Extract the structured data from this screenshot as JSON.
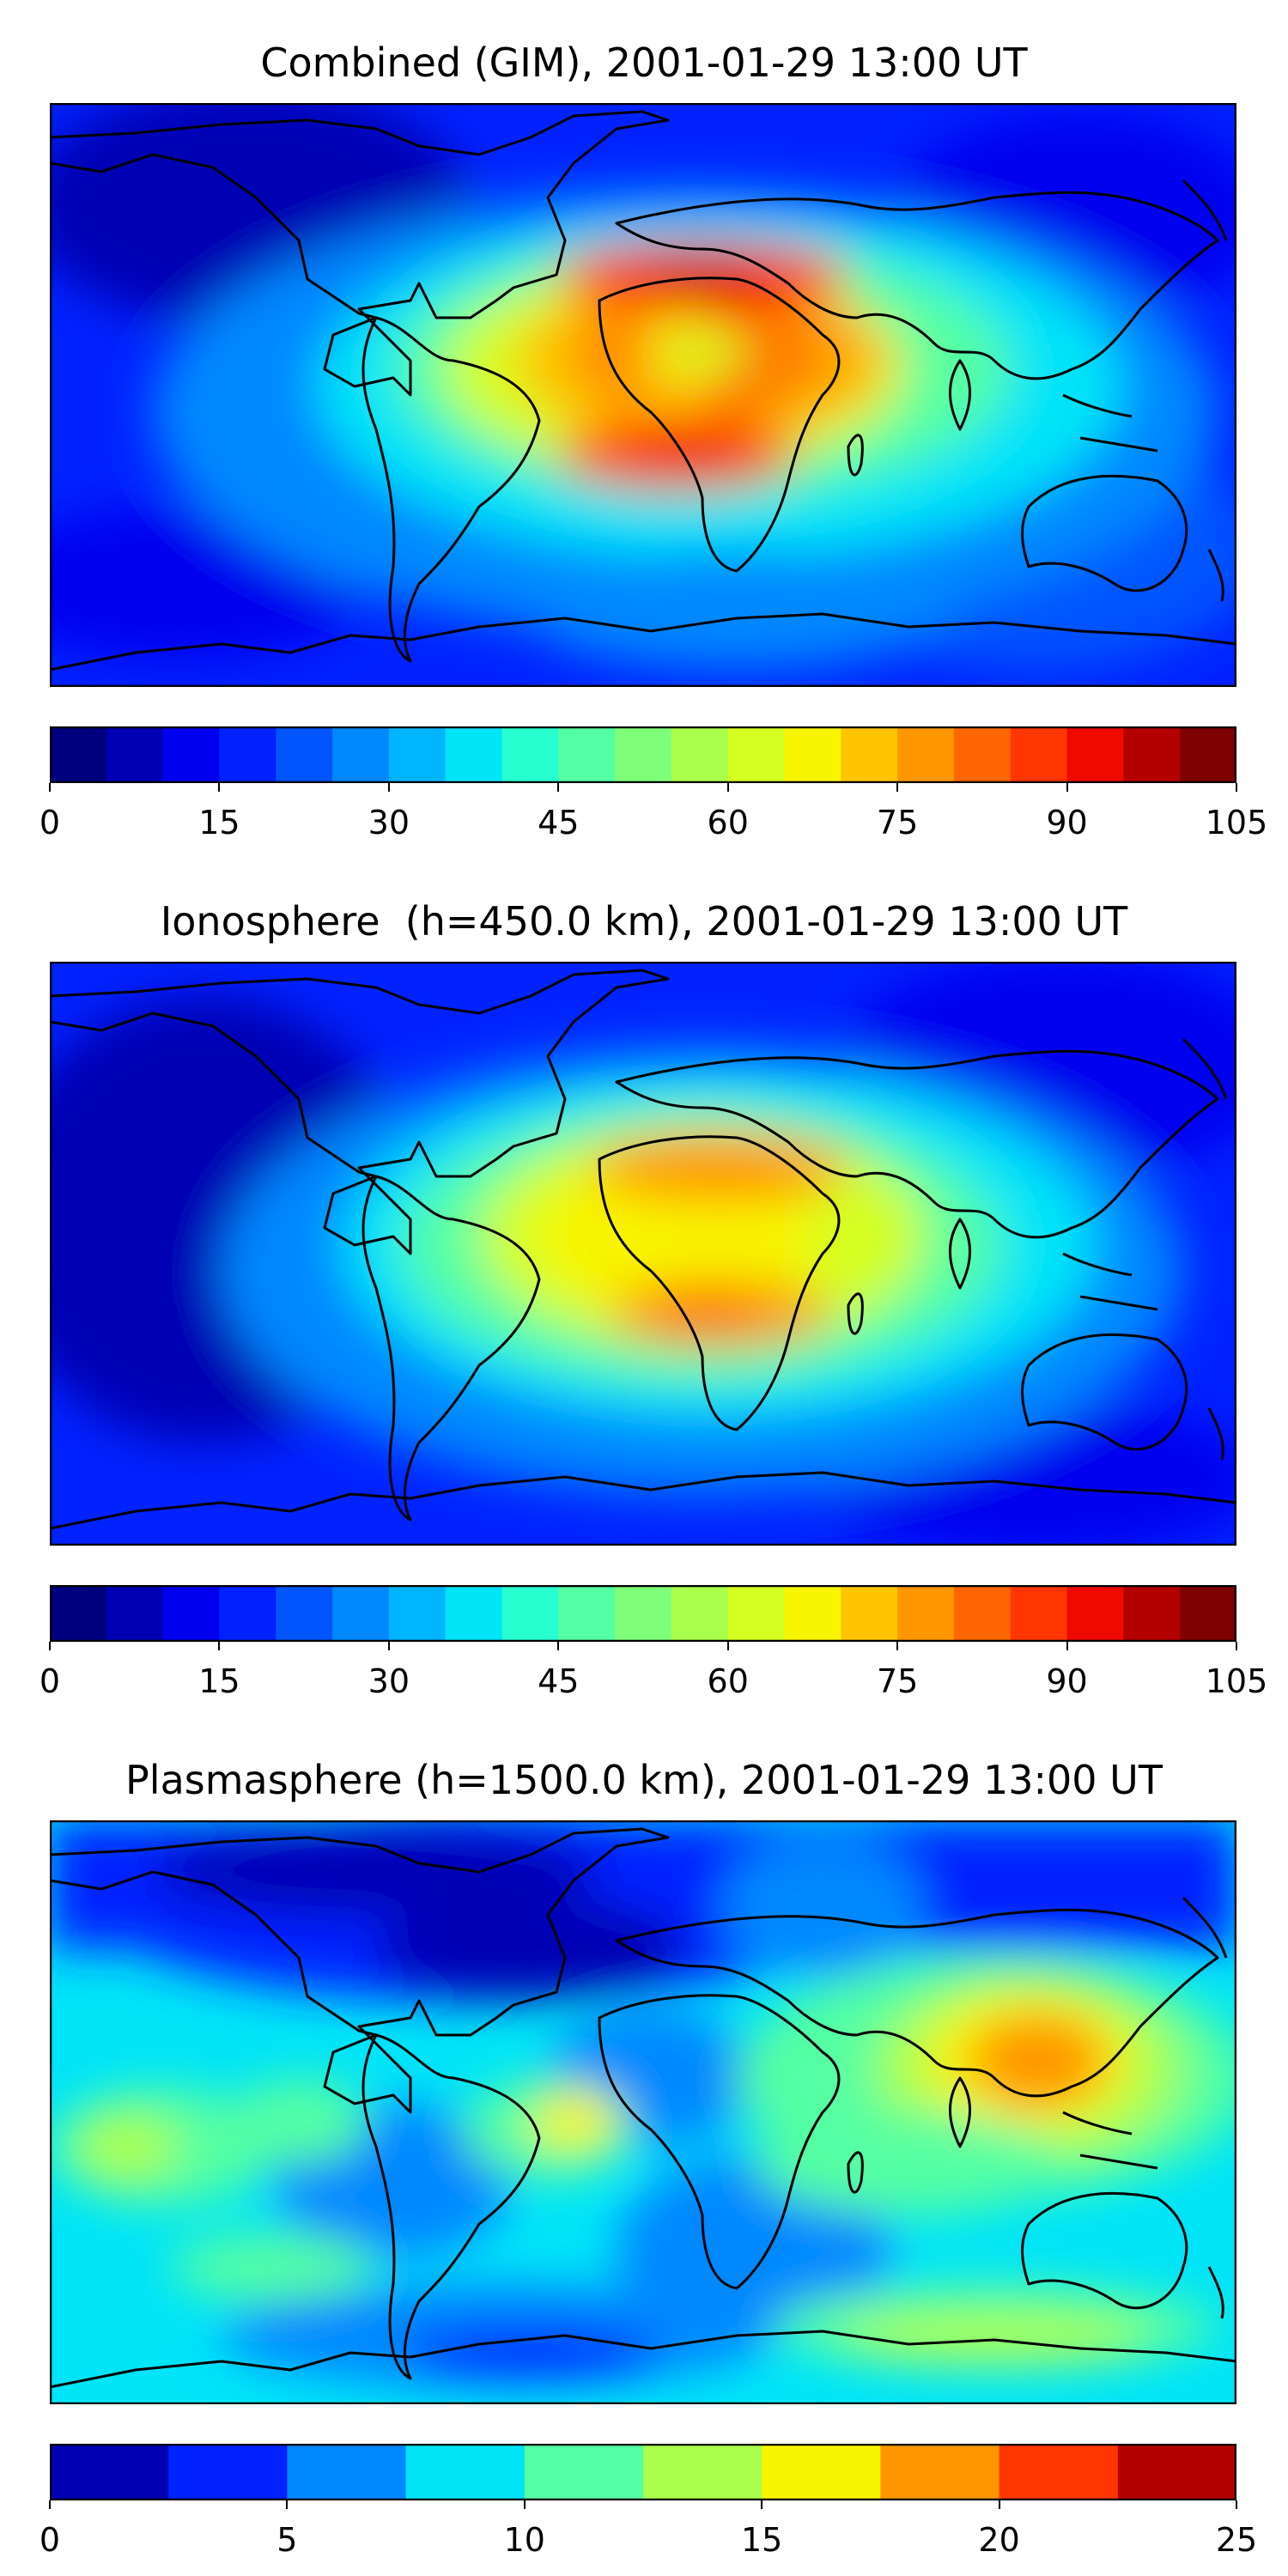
{
  "panels": [
    {
      "title": "Combined (GIM), 2001-01-29 13:00 UT",
      "colorbar": {
        "ticks": [
          "0",
          "15",
          "30",
          "45",
          "60",
          "75",
          "90",
          "105"
        ],
        "levels": [
          "#00007f",
          "#0000b3",
          "#0000ee",
          "#0022ff",
          "#0055ff",
          "#0088ff",
          "#00b5ff",
          "#00e4f8",
          "#27ffd0",
          "#55ffa3",
          "#7fff79",
          "#aaff4d",
          "#d5ff22",
          "#f8f500",
          "#ffc500",
          "#ff9600",
          "#ff6600",
          "#ff3600",
          "#ee0a00",
          "#b30000",
          "#7f0000"
        ]
      }
    },
    {
      "title": "Ionosphere  (h=450.0 km), 2001-01-29 13:00 UT",
      "colorbar": {
        "ticks": [
          "0",
          "15",
          "30",
          "45",
          "60",
          "75",
          "90",
          "105"
        ],
        "levels": [
          "#00007f",
          "#0000b3",
          "#0000ee",
          "#0022ff",
          "#0055ff",
          "#0088ff",
          "#00b5ff",
          "#00e4f8",
          "#27ffd0",
          "#55ffa3",
          "#7fff79",
          "#aaff4d",
          "#d5ff22",
          "#f8f500",
          "#ffc500",
          "#ff9600",
          "#ff6600",
          "#ff3600",
          "#ee0a00",
          "#b30000",
          "#7f0000"
        ]
      }
    },
    {
      "title": "Plasmasphere (h=1500.0 km), 2001-01-29 13:00 UT",
      "colorbar": {
        "ticks": [
          "0",
          "5",
          "10",
          "15",
          "20",
          "25"
        ],
        "levels": [
          "#0000b3",
          "#0022ff",
          "#0088ff",
          "#00e4f8",
          "#55ffa3",
          "#aaff4d",
          "#f8f500",
          "#ff9600",
          "#ff3600",
          "#b30000"
        ]
      }
    }
  ]
}
